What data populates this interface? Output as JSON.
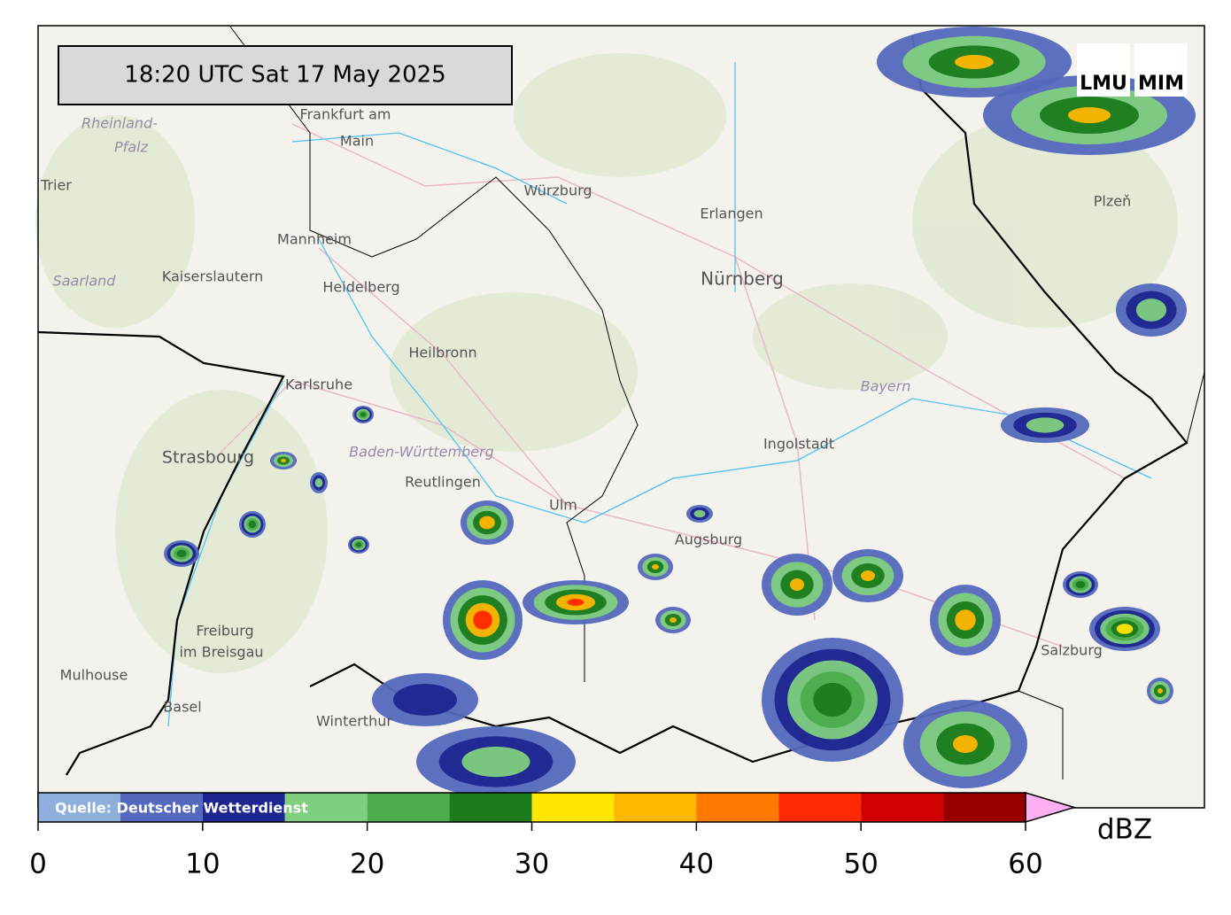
{
  "header": {
    "timestamp": "18:20 UTC  Sat 17 May 2025"
  },
  "logos": [
    "LMU",
    "MIM"
  ],
  "map": {
    "places": [
      "Frankfurt am",
      "Main",
      "Rheinland-",
      "Pfalz",
      "Trier",
      "Würzburg",
      "Erlangen",
      "Nürnberg",
      "Plzeň",
      "Mannheim",
      "Kaiserslautern",
      "Saarland",
      "Heidelberg",
      "Heilbronn",
      "Karlsruhe",
      "Bayern",
      "Strasbourg",
      "Baden-Württemberg",
      "Reutlingen",
      "Ulm",
      "Ingolstadt",
      "Augsburg",
      "Freiburg",
      "im Breisgau",
      "Mulhouse",
      "Basel",
      "Winterthur",
      "Salzburg"
    ]
  },
  "colorbar": {
    "source": "Quelle: Deutscher Wetterdienst",
    "label": "dBZ",
    "ticks": [
      0,
      10,
      20,
      30,
      40,
      50,
      60
    ],
    "bounds": [
      0,
      5,
      10,
      15,
      20,
      25,
      30,
      35,
      40,
      45,
      50,
      55,
      60
    ],
    "colors": [
      "#8eaedb",
      "#5468bd",
      "#1d2590",
      "#7fcf7f",
      "#4cac4c",
      "#1b7a1b",
      "#ffe600",
      "#ffb700",
      "#ff7800",
      "#ff2800",
      "#d20000",
      "#980000"
    ],
    "extend_color": "#ffb0f2"
  }
}
